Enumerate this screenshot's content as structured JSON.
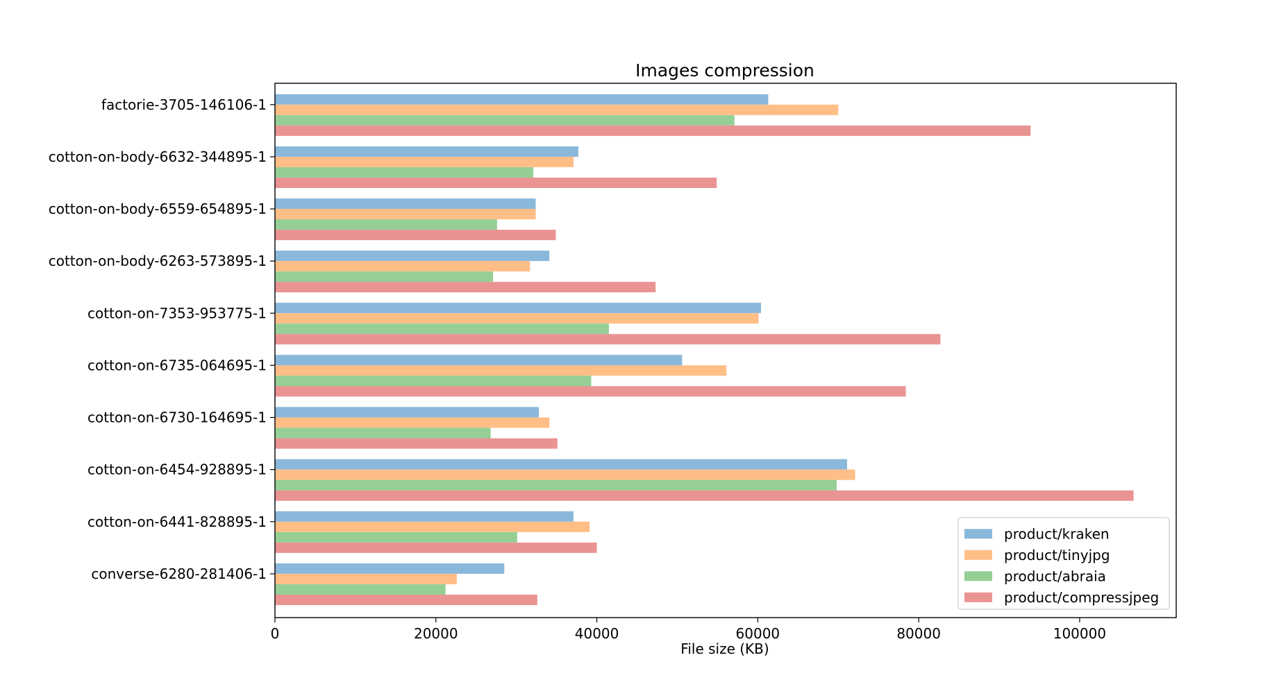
{
  "chart_data": {
    "type": "bar",
    "orientation": "horizontal",
    "title": "Images compression",
    "xlabel": "File size (KB)",
    "ylabel": "",
    "xlim": [
      0,
      112000
    ],
    "xticks": [
      0,
      20000,
      40000,
      60000,
      80000,
      100000
    ],
    "grid": false,
    "legend_position": "lower right",
    "categories": [
      "factorie-3705-146106-1",
      "cotton-on-body-6632-344895-1",
      "cotton-on-body-6559-654895-1",
      "cotton-on-body-6263-573895-1",
      "cotton-on-7353-953775-1",
      "cotton-on-6735-064695-1",
      "cotton-on-6730-164695-1",
      "cotton-on-6454-928895-1",
      "cotton-on-6441-828895-1",
      "converse-6280-281406-1"
    ],
    "series": [
      {
        "name": "product/kraken",
        "color": "#8ab8db",
        "values": [
          61300,
          37700,
          32400,
          34100,
          60400,
          50600,
          32800,
          71100,
          37100,
          28500
        ]
      },
      {
        "name": "product/tinyjpg",
        "color": "#ffbe86",
        "values": [
          70000,
          37100,
          32400,
          31700,
          60100,
          56100,
          34100,
          72100,
          39100,
          22600
        ]
      },
      {
        "name": "product/abraia",
        "color": "#95cf95",
        "values": [
          57100,
          32100,
          27600,
          27100,
          41500,
          39300,
          26800,
          69800,
          30100,
          21200
        ]
      },
      {
        "name": "product/compressjpeg",
        "color": "#ea9393",
        "values": [
          93900,
          54900,
          34900,
          47300,
          82700,
          78400,
          35100,
          106700,
          40000,
          32600
        ]
      }
    ]
  }
}
